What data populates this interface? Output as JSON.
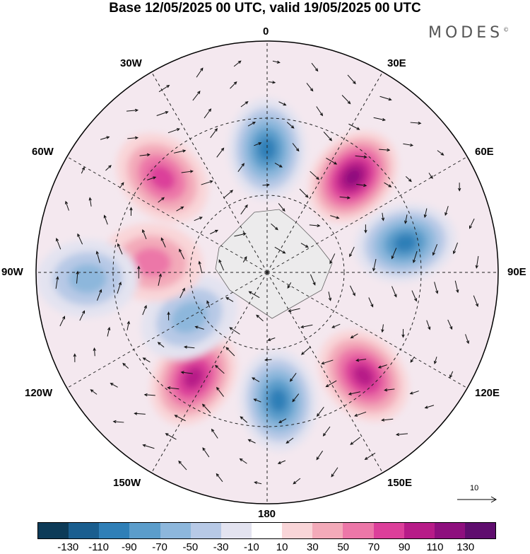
{
  "title": "Base 12/05/2025 00 UTC, valid 19/05/2025 00 UTC",
  "brand": "MODES",
  "brand_mark": "©",
  "longitude_labels": {
    "lon_0": "0",
    "lon_30e": "30E",
    "lon_60e": "60E",
    "lon_90e": "90E",
    "lon_120e": "120E",
    "lon_150e": "150E",
    "lon_180": "180",
    "lon_150w": "150W",
    "lon_120w": "120W",
    "lon_90w": "90W",
    "lon_60w": "60W",
    "lon_30w": "30W"
  },
  "reference_vector_label": "10",
  "colorbar": {
    "colors": [
      "#0d3b58",
      "#1a5e8f",
      "#2f7fb7",
      "#5b9dcb",
      "#8db7dc",
      "#b7c9e6",
      "#e3e3f0",
      "#ffffff",
      "#f9d5d8",
      "#f3aab9",
      "#ec77a8",
      "#dc3f9a",
      "#b71b88",
      "#8e0f7e",
      "#5f0d6e"
    ],
    "tick_labels": [
      "-130",
      "-110",
      "-90",
      "-70",
      "-50",
      "-30",
      "-10",
      "10",
      "30",
      "50",
      "70",
      "90",
      "110",
      "130"
    ]
  },
  "anomaly_centers": [
    {
      "lon_deg": 0,
      "colat_deg": 48,
      "sign": "negative",
      "level": 4
    },
    {
      "lon_deg": 42,
      "colat_deg": 50,
      "sign": "positive",
      "level": 5
    },
    {
      "lon_deg": 78,
      "colat_deg": 55,
      "sign": "negative",
      "level": 4
    },
    {
      "lon_deg": 137,
      "colat_deg": 55,
      "sign": "positive",
      "level": 4
    },
    {
      "lon_deg": 175,
      "colat_deg": 50,
      "sign": "negative",
      "level": 4
    },
    {
      "lon_deg": -145,
      "colat_deg": 50,
      "sign": "positive",
      "level": 4
    },
    {
      "lon_deg": -120,
      "colat_deg": 35,
      "sign": "negative",
      "level": 2
    },
    {
      "lon_deg": -85,
      "colat_deg": 45,
      "sign": "positive",
      "level": 2
    },
    {
      "lon_deg": -92,
      "colat_deg": 70,
      "sign": "negative",
      "level": 2
    },
    {
      "lon_deg": -48,
      "colat_deg": 55,
      "sign": "positive",
      "level": 3
    }
  ]
}
